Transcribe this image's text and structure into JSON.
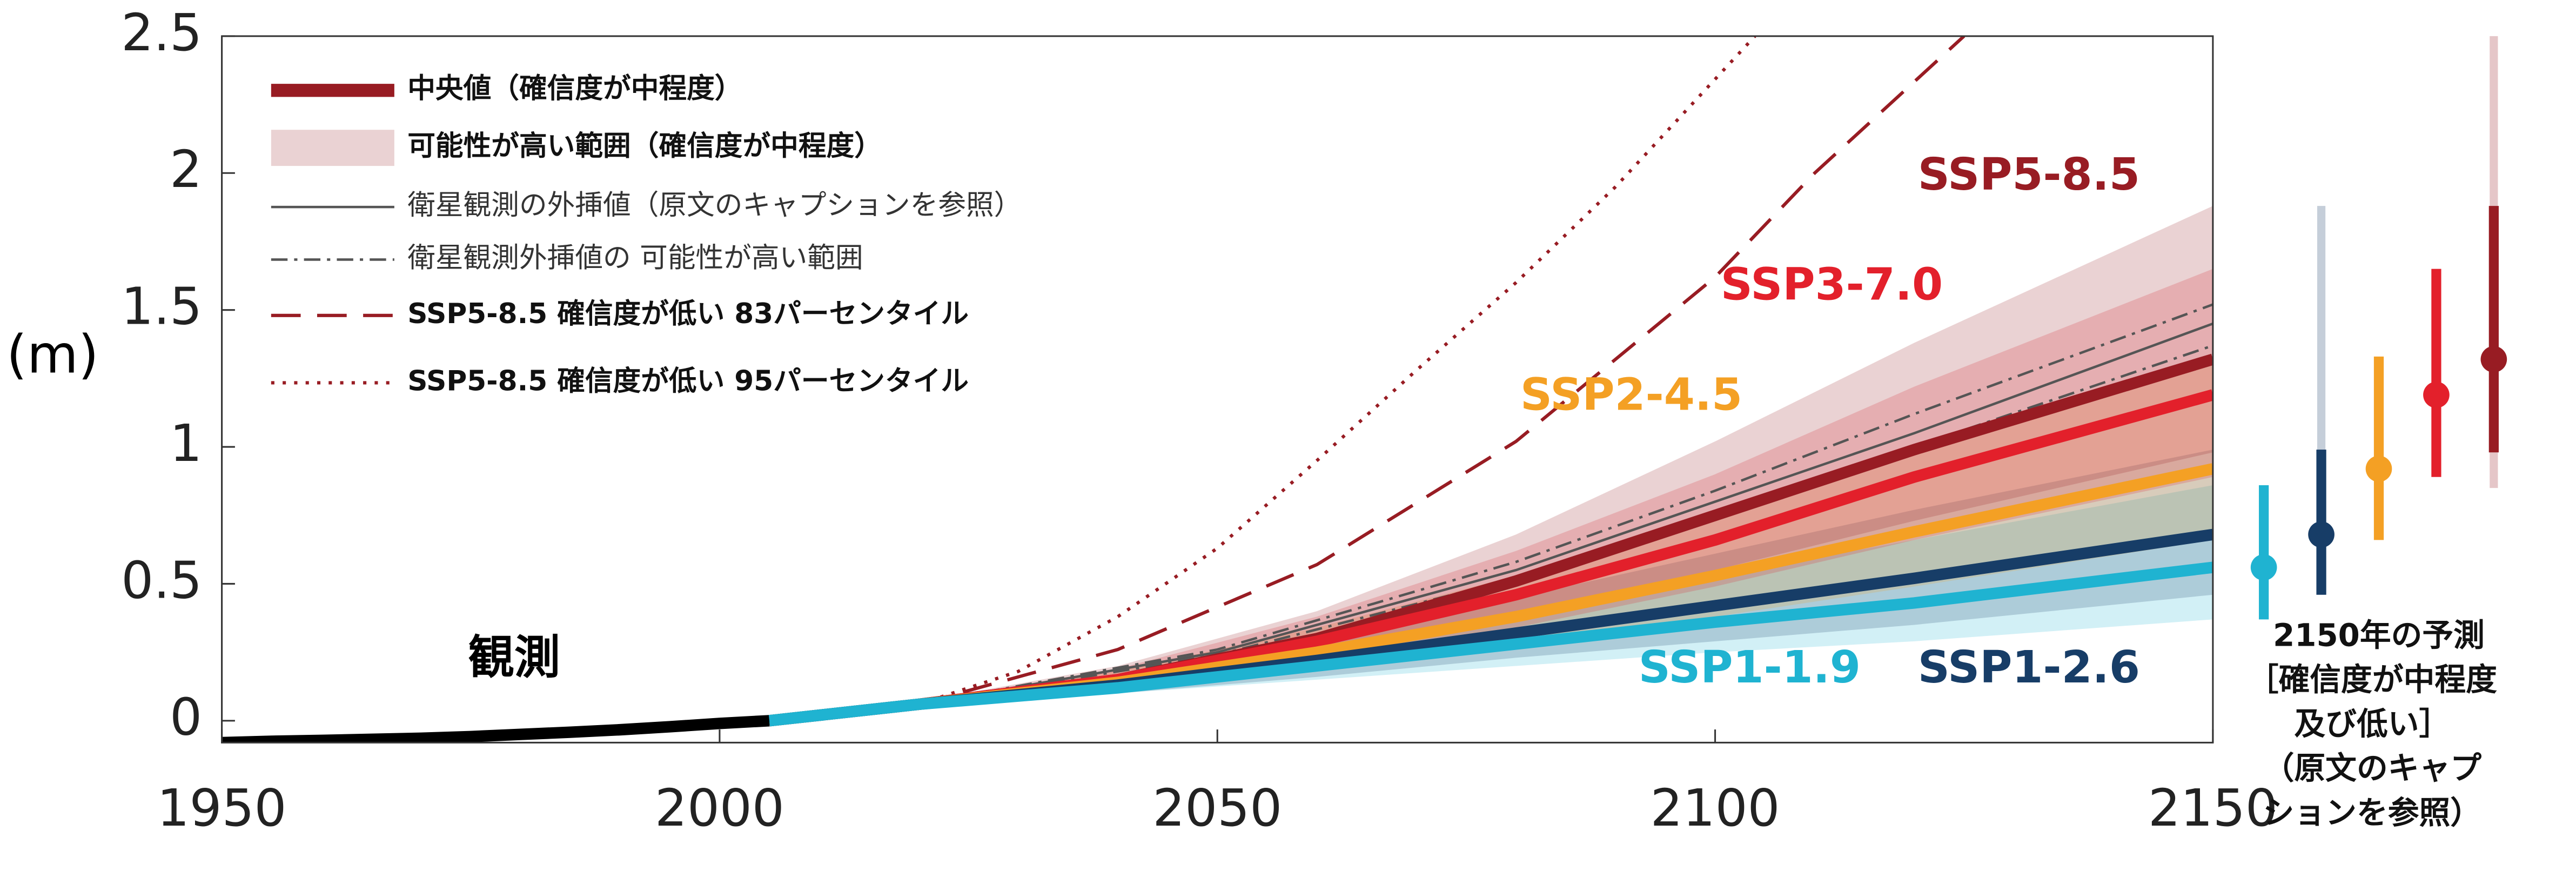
{
  "chart_data": {
    "type": "line",
    "y_label": "(m)",
    "xlim": [
      1950,
      2150
    ],
    "ylim": [
      -0.08,
      2.5
    ],
    "xticks": [
      1950,
      2000,
      2050,
      2100,
      2150
    ],
    "yticks": [
      0,
      0.5,
      1,
      1.5,
      2,
      2.5
    ],
    "observed": {
      "name": "観測",
      "color": "#000000",
      "x": [
        1950,
        1955,
        1960,
        1965,
        1970,
        1975,
        1980,
        1985,
        1990,
        1995,
        2000,
        2005
      ],
      "values": [
        -0.08,
        -0.075,
        -0.072,
        -0.068,
        -0.064,
        -0.058,
        -0.05,
        -0.042,
        -0.033,
        -0.022,
        -0.01,
        0.0
      ]
    },
    "x": [
      2005,
      2020,
      2040,
      2060,
      2080,
      2100,
      2120,
      2150
    ],
    "series": [
      {
        "name": "SSP1-1.9",
        "color": "#1fb3d1",
        "values": [
          0.0,
          0.06,
          0.12,
          0.2,
          0.28,
          0.36,
          0.43,
          0.56
        ],
        "low": [
          0.0,
          0.05,
          0.1,
          0.15,
          0.2,
          0.25,
          0.29,
          0.37
        ],
        "high": [
          0.0,
          0.07,
          0.15,
          0.27,
          0.4,
          0.53,
          0.66,
          0.86
        ]
      },
      {
        "name": "SSP1-2.6",
        "color": "#173d67",
        "values": [
          0.0,
          0.06,
          0.13,
          0.22,
          0.32,
          0.42,
          0.52,
          0.68
        ],
        "low": [
          0.0,
          0.05,
          0.1,
          0.16,
          0.23,
          0.29,
          0.35,
          0.46
        ],
        "high": [
          0.0,
          0.07,
          0.16,
          0.29,
          0.45,
          0.61,
          0.77,
          0.99
        ],
        "low_confidence": [
          0.46,
          1.88
        ]
      },
      {
        "name": "SSP2-4.5",
        "color": "#f4a024",
        "values": [
          0.0,
          0.06,
          0.14,
          0.25,
          0.38,
          0.53,
          0.69,
          0.92
        ],
        "low": [
          0.0,
          0.05,
          0.11,
          0.19,
          0.28,
          0.38,
          0.49,
          0.66
        ],
        "high": [
          0.0,
          0.07,
          0.18,
          0.34,
          0.53,
          0.76,
          0.99,
          1.33
        ]
      },
      {
        "name": "SSP3-7.0",
        "color": "#e3202b",
        "values": [
          0.0,
          0.06,
          0.15,
          0.29,
          0.46,
          0.66,
          0.89,
          1.19
        ],
        "low": [
          0.0,
          0.05,
          0.12,
          0.22,
          0.34,
          0.49,
          0.66,
          0.89
        ],
        "high": [
          0.0,
          0.07,
          0.19,
          0.38,
          0.62,
          0.9,
          1.22,
          1.65
        ]
      },
      {
        "name": "SSP5-8.5",
        "color": "#981c23",
        "values": [
          0.0,
          0.06,
          0.15,
          0.3,
          0.51,
          0.75,
          0.99,
          1.32
        ],
        "low": [
          0.0,
          0.05,
          0.12,
          0.23,
          0.38,
          0.55,
          0.73,
          0.98
        ],
        "high": [
          0.0,
          0.07,
          0.2,
          0.4,
          0.68,
          1.02,
          1.38,
          1.88
        ],
        "low_confidence": [
          0.85,
          2.5
        ]
      }
    ],
    "extrapolation": {
      "color": "#555555",
      "x": [
        2020,
        2050,
        2080,
        2100,
        2120,
        2150
      ],
      "values": [
        0.06,
        0.25,
        0.55,
        0.8,
        1.05,
        1.45
      ],
      "low": [
        0.06,
        0.24,
        0.52,
        0.76,
        1.0,
        1.37
      ],
      "high": [
        0.06,
        0.26,
        0.58,
        0.84,
        1.12,
        1.52
      ]
    },
    "low_confidence_lines": [
      {
        "style": "dashed",
        "color": "#981c23",
        "x": [
          2020,
          2040,
          2060,
          2080,
          2100,
          2110,
          2125
        ],
        "values": [
          0.06,
          0.26,
          0.57,
          1.02,
          1.62,
          2.0,
          2.5
        ]
      },
      {
        "style": "dotted",
        "color": "#981c23",
        "x": [
          2020,
          2030,
          2040,
          2050,
          2060,
          2070,
          2080,
          2090,
          2104
        ],
        "values": [
          0.06,
          0.18,
          0.38,
          0.63,
          0.95,
          1.28,
          1.6,
          1.95,
          2.5
        ]
      }
    ],
    "legend": [
      {
        "label": "中央値（確信度が中程度）",
        "style": "median"
      },
      {
        "label": "可能性が高い範囲（確信度が中程度）",
        "style": "band"
      },
      {
        "label": "衛星観測の外挿値（原文のキャプションを参照）",
        "style": "solid"
      },
      {
        "label": "衛星観測外挿値の 可能性が高い範囲",
        "style": "dashdot"
      },
      {
        "label": "SSP5-8.5 確信度が低い 83パーセンタイル",
        "style": "dashed"
      },
      {
        "label": "SSP5-8.5 確信度が低い 95パーセンタイル",
        "style": "dotted"
      }
    ],
    "side_caption": [
      "2150年の予測",
      "［確信度が中程度",
      "及び低い］",
      "（原文のキャプ",
      "ションを参照）"
    ]
  }
}
